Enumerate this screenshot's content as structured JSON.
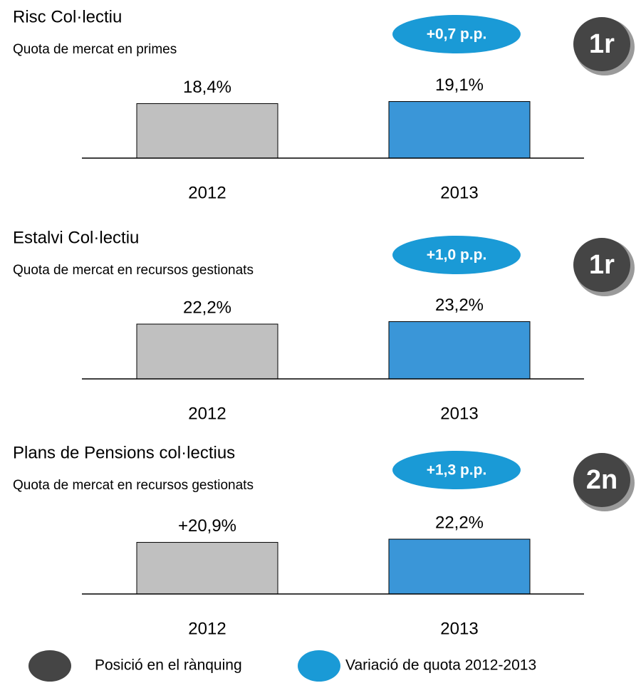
{
  "chart_data": [
    {
      "type": "bar",
      "title": "Risc Col·lectiu",
      "subtitle": "Quota de mercat en primes",
      "categories": [
        "2012",
        "2013"
      ],
      "values": [
        18.4,
        19.1
      ],
      "value_labels": [
        "18,4%",
        "19,1%"
      ],
      "colors": [
        "#c0c0c0",
        "#3a96d8"
      ],
      "ylim": [
        0,
        25
      ],
      "variation": "+0,7 p.p.",
      "rank": "1r"
    },
    {
      "type": "bar",
      "title": "Estalvi Col·lectiu",
      "subtitle": "Quota de mercat en recursos gestionats",
      "categories": [
        "2012",
        "2013"
      ],
      "values": [
        22.2,
        23.2
      ],
      "value_labels": [
        "22,2%",
        "23,2%"
      ],
      "colors": [
        "#c0c0c0",
        "#3a96d8"
      ],
      "ylim": [
        0,
        30
      ],
      "variation": "+1,0 p.p.",
      "rank": "1r"
    },
    {
      "type": "bar",
      "title": "Plans de Pensions col·lectius",
      "subtitle": "Quota de mercat en recursos gestionats",
      "categories": [
        "2012",
        "2013"
      ],
      "values": [
        20.9,
        22.2
      ],
      "value_labels": [
        "+20,9%",
        "22,2%"
      ],
      "colors": [
        "#c0c0c0",
        "#3a96d8"
      ],
      "ylim": [
        0,
        30
      ],
      "variation": "+1,3 p.p.",
      "rank": "2n"
    }
  ],
  "legend": {
    "items": [
      {
        "name": "Posició en el rànquing",
        "color": "#454545"
      },
      {
        "name": "Variació de quota 2012-2013",
        "color": "#1a9ad6"
      }
    ]
  }
}
